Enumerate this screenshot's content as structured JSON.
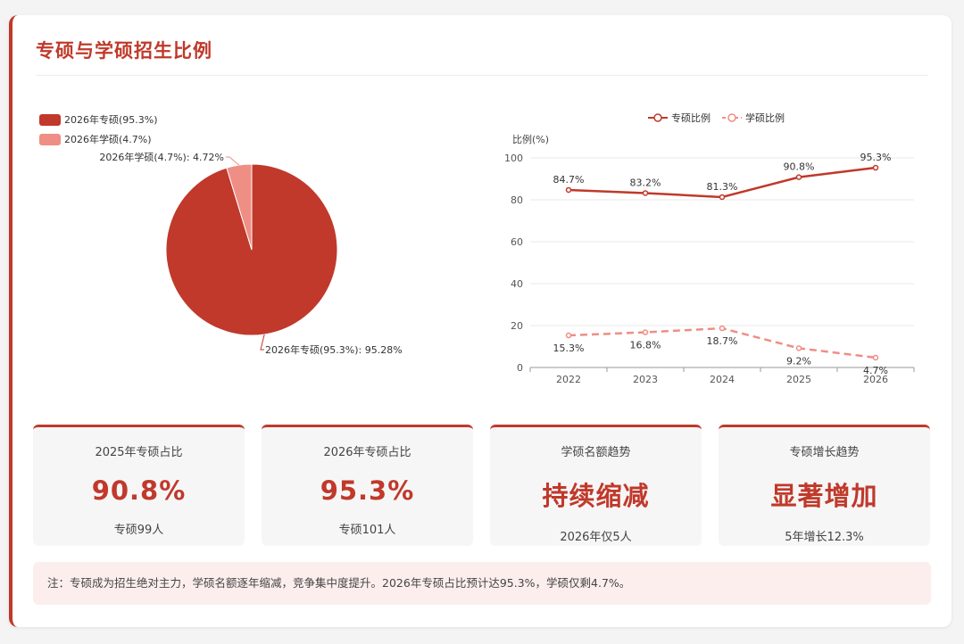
{
  "title": "专硕与学硕招生比例",
  "colors": {
    "accent": "#c0392b",
    "secondary": "#ef8e84"
  },
  "chart_data": [
    {
      "type": "pie",
      "legend_position": "top-left",
      "slices": [
        {
          "name": "2026年专硕(95.3%)",
          "value": 95.28,
          "label": "2026年专硕(95.3%): 95.28%",
          "color": "#c0392b"
        },
        {
          "name": "2026年学硕(4.7%)",
          "value": 4.72,
          "label": "2026年学硕(4.7%): 4.72%",
          "color": "#ef8e84"
        }
      ]
    },
    {
      "type": "line",
      "legend_position": "top-center",
      "ylabel": "比例(%)",
      "ylim": [
        0,
        100
      ],
      "yticks": [
        "0",
        "20",
        "40",
        "60",
        "80",
        "100"
      ],
      "categories": [
        "2022",
        "2023",
        "2024",
        "2025",
        "2026"
      ],
      "grid": true,
      "series": [
        {
          "name": "专硕比例",
          "values": [
            84.7,
            83.2,
            81.3,
            90.8,
            95.3
          ],
          "labels": [
            "84.7%",
            "83.2%",
            "81.3%",
            "90.8%",
            "95.3%"
          ],
          "color": "#c0392b",
          "dashed": false
        },
        {
          "name": "学硕比例",
          "values": [
            15.3,
            16.8,
            18.7,
            9.2,
            4.7
          ],
          "labels": [
            "15.3%",
            "16.8%",
            "18.7%",
            "9.2%",
            "4.7%"
          ],
          "color": "#ef8e84",
          "dashed": true
        }
      ]
    }
  ],
  "stats": [
    {
      "label": "2025年专硕占比",
      "value": "90.8%",
      "sub": "专硕99人"
    },
    {
      "label": "2026年专硕占比",
      "value": "95.3%",
      "sub": "专硕101人"
    },
    {
      "label": "学硕名额趋势",
      "value": "持续缩减",
      "sub": "2026年仅5人"
    },
    {
      "label": "专硕增长趋势",
      "value": "显著增加",
      "sub": "5年增长12.3%"
    }
  ],
  "note": "注：专硕成为招生绝对主力，学硕名额逐年缩减，竞争集中度提升。2026年专硕占比预计达95.3%，学硕仅剩4.7%。"
}
